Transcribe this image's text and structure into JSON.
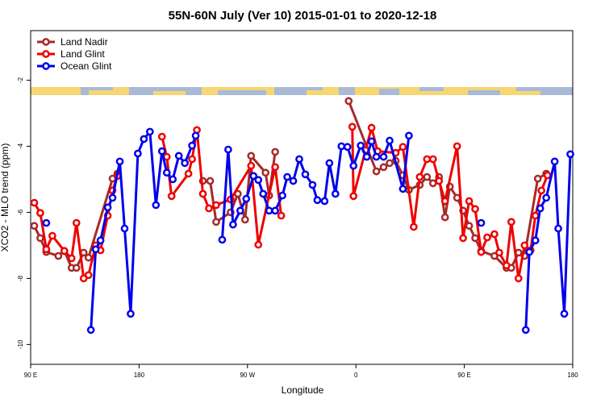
{
  "chart_data": {
    "type": "line",
    "title": "55N-60N July (Ver 10)   2015-01-01 to 2020-12-18",
    "x_label": "Longitude",
    "y_label": "XCO2 - MLO trend (ppm)",
    "xlim": [
      90,
      540
    ],
    "ylim": [
      -10.6,
      -0.5
    ],
    "xticks": [
      {
        "value": 90,
        "label": "90 E"
      },
      {
        "value": 180,
        "label": "180"
      },
      {
        "value": 270,
        "label": "90 W"
      },
      {
        "value": 360,
        "label": "0"
      },
      {
        "value": 450,
        "label": "90 E"
      },
      {
        "value": 540,
        "label": "180"
      }
    ],
    "yticks": [
      -2,
      -4,
      -6,
      -8,
      -10
    ],
    "legend": "top-left",
    "series": [
      {
        "name": "Land Nadir",
        "color": "#a52a2a",
        "x": [
          93,
          98,
          103,
          113,
          118,
          124,
          128,
          134,
          138,
          158,
          162,
          200,
          233,
          239,
          244,
          256,
          262,
          268,
          273,
          285,
          288,
          293,
          320,
          354,
          377,
          383,
          388,
          393,
          399,
          404,
          413,
          419,
          424,
          429,
          434,
          438,
          444,
          449,
          454,
          459,
          464,
          475,
          485,
          489,
          495,
          500,
          511,
          518
        ],
        "values": [
          -6.41,
          -6.78,
          -7.2,
          -7.32,
          -7.17,
          -7.68,
          -7.68,
          -7.22,
          -7.37,
          -4.98,
          -4.83,
          null,
          -5.05,
          -5.05,
          -6.29,
          -6.0,
          -5.44,
          -6.22,
          -4.29,
          -4.8,
          -5.49,
          -4.17,
          null,
          -2.63,
          -4.76,
          -4.63,
          -4.51,
          -4.44,
          -4.88,
          -5.32,
          -5.17,
          -4.93,
          -5.12,
          -4.93,
          -6.15,
          -5.22,
          -5.56,
          -5.95,
          -6.41,
          -6.78,
          -7.17,
          -7.32,
          -7.68,
          -7.68,
          -7.22,
          -7.32,
          -4.98,
          -4.83
        ]
      },
      {
        "name": "Land Glint",
        "color": "#ee0000",
        "x": [
          93,
          98,
          103,
          108,
          118,
          124,
          128,
          134,
          138,
          144,
          148,
          154,
          158,
          162,
          180,
          199,
          203,
          207,
          221,
          224,
          228,
          233,
          238,
          244,
          256,
          273,
          279,
          293,
          298,
          330,
          357,
          358,
          368,
          373,
          378,
          393,
          399,
          408,
          413,
          419,
          424,
          429,
          434,
          444,
          449,
          454,
          459,
          464,
          469,
          475,
          479,
          485,
          489,
          495,
          500,
          505,
          509,
          514,
          519
        ],
        "values": [
          -5.71,
          -6.02,
          -7.12,
          -6.71,
          -7.17,
          -7.39,
          -6.32,
          -8.0,
          -7.9,
          -7.0,
          -7.15,
          -6.1,
          -5.34,
          -4.9,
          null,
          -3.71,
          -4.32,
          -5.51,
          -4.83,
          -4.39,
          -3.51,
          -5.44,
          -5.88,
          -5.78,
          -5.61,
          -4.59,
          -6.98,
          -4.63,
          -6.1,
          null,
          -3.41,
          -5.51,
          -4.12,
          -3.44,
          -4.15,
          -4.2,
          -4.02,
          -6.44,
          -4.93,
          -4.39,
          -4.39,
          -5.05,
          -5.66,
          -4.0,
          -6.78,
          -5.66,
          -5.9,
          -7.2,
          -6.76,
          -6.66,
          -7.22,
          -7.61,
          -6.29,
          -8.0,
          -7.0,
          -7.15,
          -6.1,
          -5.34,
          -4.88
        ]
      },
      {
        "name": "Ocean Glint",
        "color": "#0000ee",
        "x": [
          103,
          120,
          140,
          144,
          148,
          154,
          158,
          164,
          168,
          173,
          179,
          184,
          189,
          194,
          199,
          203,
          208,
          213,
          218,
          224,
          227,
          240,
          249,
          254,
          258,
          264,
          269,
          275,
          279,
          283,
          288,
          293,
          299,
          303,
          308,
          313,
          318,
          324,
          328,
          334,
          338,
          343,
          348,
          353,
          358,
          364,
          369,
          373,
          377,
          383,
          388,
          399,
          404,
          434,
          464,
          480,
          501,
          504,
          509,
          513,
          518,
          525,
          528,
          533,
          538
        ],
        "values": [
          -6.32,
          null,
          -9.56,
          -7.12,
          -6.85,
          -5.85,
          -5.56,
          -4.46,
          -6.49,
          -9.07,
          -4.22,
          -3.78,
          -3.56,
          -5.78,
          -4.15,
          -4.8,
          -5.0,
          -4.29,
          -4.51,
          -3.98,
          -3.68,
          null,
          -6.83,
          -4.1,
          -6.37,
          -5.95,
          -5.59,
          -4.9,
          -5.02,
          -5.44,
          -5.95,
          -5.95,
          -5.49,
          -4.93,
          -5.05,
          -4.39,
          -4.85,
          -5.17,
          -5.63,
          -5.66,
          -4.51,
          -5.44,
          -4.0,
          -4.02,
          -4.59,
          -3.98,
          -4.32,
          -3.85,
          -4.32,
          -4.32,
          -3.83,
          -5.29,
          -3.68,
          null,
          -6.32,
          null,
          -9.56,
          -7.2,
          -6.85,
          -5.88,
          -5.56,
          -4.46,
          -6.49,
          -9.07,
          -4.24
        ]
      }
    ]
  }
}
